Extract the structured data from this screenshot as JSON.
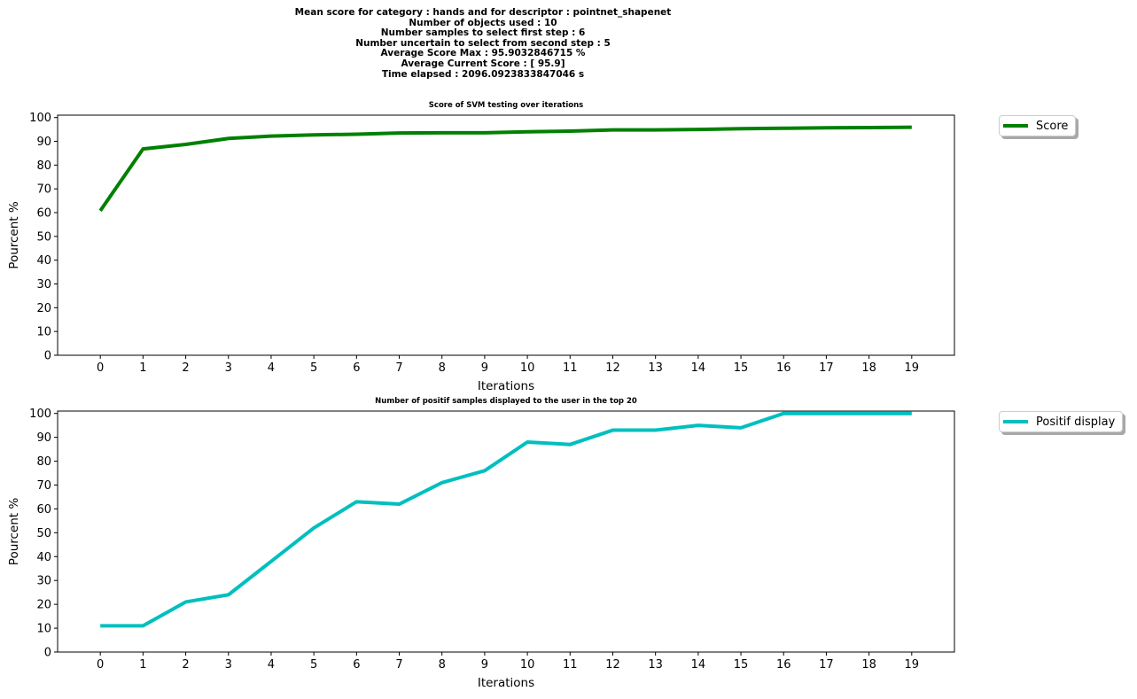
{
  "figure": {
    "suptitle_lines": [
      "Mean score for category : hands and for descriptor : pointnet_shapenet",
      "Number of objects used : 10",
      "Number samples to select first step  : 6",
      "Number uncertain to select from second step  : 5",
      "Average Score Max : 95.9032846715 %",
      "Average Current Score : [ 95.9]",
      "Time elapsed : 2096.0923833847046 s"
    ]
  },
  "chart_data": [
    {
      "type": "line",
      "title": "Score of SVM testing over iterations",
      "xlabel": "Iterations",
      "ylabel": "Pourcent %",
      "xlim": [
        -1,
        20
      ],
      "ylim": [
        0,
        101
      ],
      "x": [
        0,
        1,
        2,
        3,
        4,
        5,
        6,
        7,
        8,
        9,
        10,
        11,
        12,
        13,
        14,
        15,
        16,
        17,
        18,
        19
      ],
      "xticks": [
        "0",
        "1",
        "2",
        "3",
        "4",
        "5",
        "6",
        "7",
        "8",
        "9",
        "10",
        "11",
        "12",
        "13",
        "14",
        "15",
        "16",
        "17",
        "18",
        "19"
      ],
      "yticks": [
        "0",
        "10",
        "20",
        "30",
        "40",
        "50",
        "60",
        "70",
        "80",
        "90",
        "100"
      ],
      "grid": false,
      "legend_placement": "outside-top-right",
      "series": [
        {
          "name": "Score",
          "color": "#008000",
          "values": [
            60.8,
            86.8,
            88.7,
            91.2,
            92.2,
            92.7,
            93.0,
            93.5,
            93.6,
            93.6,
            94.0,
            94.3,
            94.8,
            94.8,
            95.0,
            95.3,
            95.5,
            95.7,
            95.8,
            95.9
          ]
        }
      ]
    },
    {
      "type": "line",
      "title": "Number of positif samples displayed to the user in the top 20",
      "xlabel": "Iterations",
      "ylabel": "Pourcent %",
      "xlim": [
        -1,
        20
      ],
      "ylim": [
        0,
        101
      ],
      "x": [
        0,
        1,
        2,
        3,
        4,
        5,
        6,
        7,
        8,
        9,
        10,
        11,
        12,
        13,
        14,
        15,
        16,
        17,
        18,
        19
      ],
      "xticks": [
        "0",
        "1",
        "2",
        "3",
        "4",
        "5",
        "6",
        "7",
        "8",
        "9",
        "10",
        "11",
        "12",
        "13",
        "14",
        "15",
        "16",
        "17",
        "18",
        "19"
      ],
      "yticks": [
        "0",
        "10",
        "20",
        "30",
        "40",
        "50",
        "60",
        "70",
        "80",
        "90",
        "100"
      ],
      "grid": false,
      "legend_placement": "outside-top-right",
      "series": [
        {
          "name": "Positif display",
          "color": "#00bfbf",
          "values": [
            11,
            11,
            21,
            24,
            38,
            52,
            63,
            62,
            71,
            76,
            88,
            87,
            93,
            93,
            95,
            94,
            100,
            100,
            100,
            100
          ]
        }
      ]
    }
  ]
}
